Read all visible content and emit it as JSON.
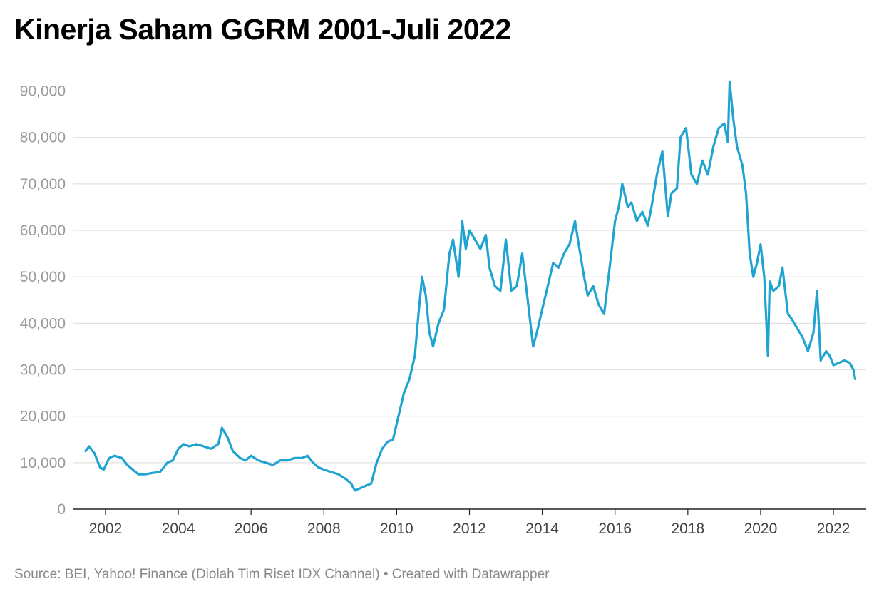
{
  "title": "Kinerja Saham GGRM 2001-Juli 2022",
  "source": "Source: BEI, Yahoo! Finance (Diolah Tim Riset IDX Channel) • Created with Datawrapper",
  "chart_data": {
    "type": "line",
    "title": "Kinerja Saham GGRM 2001-Juli 2022",
    "xlabel": "",
    "ylabel": "",
    "xlim": [
      2001.1,
      2022.9
    ],
    "ylim": [
      0,
      95000
    ],
    "grid": true,
    "y_ticks": [
      0,
      10000,
      20000,
      30000,
      40000,
      50000,
      60000,
      70000,
      80000,
      90000
    ],
    "y_tick_labels": [
      "0",
      "10,000",
      "20,000",
      "30,000",
      "40,000",
      "50,000",
      "60,000",
      "70,000",
      "80,000",
      "90,000"
    ],
    "x_ticks": [
      2002,
      2004,
      2006,
      2008,
      2010,
      2012,
      2014,
      2016,
      2018,
      2020,
      2022
    ],
    "x_tick_labels": [
      "2002",
      "2004",
      "2006",
      "2008",
      "2010",
      "2012",
      "2014",
      "2016",
      "2018",
      "2020",
      "2022"
    ],
    "series": [
      {
        "color": "#1fa3d0",
        "x": [
          2001.45,
          2001.55,
          2001.7,
          2001.85,
          2001.95,
          2002.1,
          2002.25,
          2002.45,
          2002.6,
          2002.75,
          2002.9,
          2003.1,
          2003.3,
          2003.5,
          2003.7,
          2003.85,
          2004.0,
          2004.15,
          2004.3,
          2004.5,
          2004.7,
          2004.9,
          2005.1,
          2005.2,
          2005.35,
          2005.5,
          2005.7,
          2005.85,
          2006.0,
          2006.2,
          2006.4,
          2006.6,
          2006.8,
          2007.0,
          2007.2,
          2007.4,
          2007.55,
          2007.7,
          2007.85,
          2008.0,
          2008.2,
          2008.4,
          2008.6,
          2008.75,
          2008.85,
          2009.0,
          2009.15,
          2009.3,
          2009.45,
          2009.6,
          2009.75,
          2009.9,
          2010.05,
          2010.2,
          2010.35,
          2010.5,
          2010.6,
          2010.7,
          2010.8,
          2010.9,
          2011.0,
          2011.15,
          2011.3,
          2011.45,
          2011.55,
          2011.7,
          2011.8,
          2011.9,
          2012.0,
          2012.15,
          2012.3,
          2012.45,
          2012.55,
          2012.7,
          2012.85,
          2013.0,
          2013.15,
          2013.3,
          2013.45,
          2013.6,
          2013.75,
          2013.85,
          2014.0,
          2014.15,
          2014.3,
          2014.45,
          2014.6,
          2014.75,
          2014.9,
          2015.0,
          2015.15,
          2015.25,
          2015.4,
          2015.55,
          2015.7,
          2015.85,
          2016.0,
          2016.1,
          2016.2,
          2016.35,
          2016.45,
          2016.6,
          2016.75,
          2016.9,
          2017.0,
          2017.15,
          2017.3,
          2017.45,
          2017.55,
          2017.7,
          2017.8,
          2017.95,
          2018.1,
          2018.25,
          2018.4,
          2018.55,
          2018.7,
          2018.85,
          2019.0,
          2019.1,
          2019.15,
          2019.25,
          2019.35,
          2019.5,
          2019.6,
          2019.7,
          2019.8,
          2019.9,
          2020.0,
          2020.1,
          2020.2,
          2020.25,
          2020.35,
          2020.5,
          2020.6,
          2020.75,
          2020.85,
          2021.0,
          2021.15,
          2021.3,
          2021.45,
          2021.55,
          2021.65,
          2021.8,
          2021.9,
          2022.0,
          2022.15,
          2022.3,
          2022.45,
          2022.55,
          2022.6
        ],
        "y": [
          12500,
          13500,
          12000,
          9000,
          8500,
          11000,
          11500,
          11000,
          9500,
          8500,
          7500,
          7500,
          7800,
          8000,
          10000,
          10500,
          13000,
          14000,
          13500,
          14000,
          13500,
          13000,
          14000,
          17500,
          15500,
          12500,
          11000,
          10500,
          11500,
          10500,
          10000,
          9500,
          10500,
          10500,
          11000,
          11000,
          11500,
          10000,
          9000,
          8500,
          8000,
          7500,
          6500,
          5500,
          4000,
          4500,
          5000,
          5500,
          10000,
          13000,
          14500,
          15000,
          20000,
          25000,
          28000,
          33000,
          42000,
          50000,
          46000,
          38000,
          35000,
          40000,
          43000,
          55000,
          58000,
          50000,
          62000,
          56000,
          60000,
          58000,
          56000,
          59000,
          52000,
          48000,
          47000,
          58000,
          47000,
          48000,
          55000,
          45000,
          35000,
          38000,
          43000,
          48000,
          53000,
          52000,
          55000,
          57000,
          62000,
          57000,
          50000,
          46000,
          48000,
          44000,
          42000,
          52000,
          62000,
          65000,
          70000,
          65000,
          66000,
          62000,
          64000,
          61000,
          65000,
          72000,
          77000,
          63000,
          68000,
          69000,
          80000,
          82000,
          72000,
          70000,
          75000,
          72000,
          78000,
          82000,
          83000,
          79000,
          92000,
          84000,
          78000,
          74000,
          68000,
          55000,
          50000,
          53000,
          57000,
          50000,
          33000,
          49000,
          47000,
          48000,
          52000,
          42000,
          41000,
          39000,
          37000,
          34000,
          38000,
          47000,
          32000,
          34000,
          33000,
          31000,
          31500,
          32000,
          31500,
          30000,
          28000
        ]
      }
    ]
  }
}
